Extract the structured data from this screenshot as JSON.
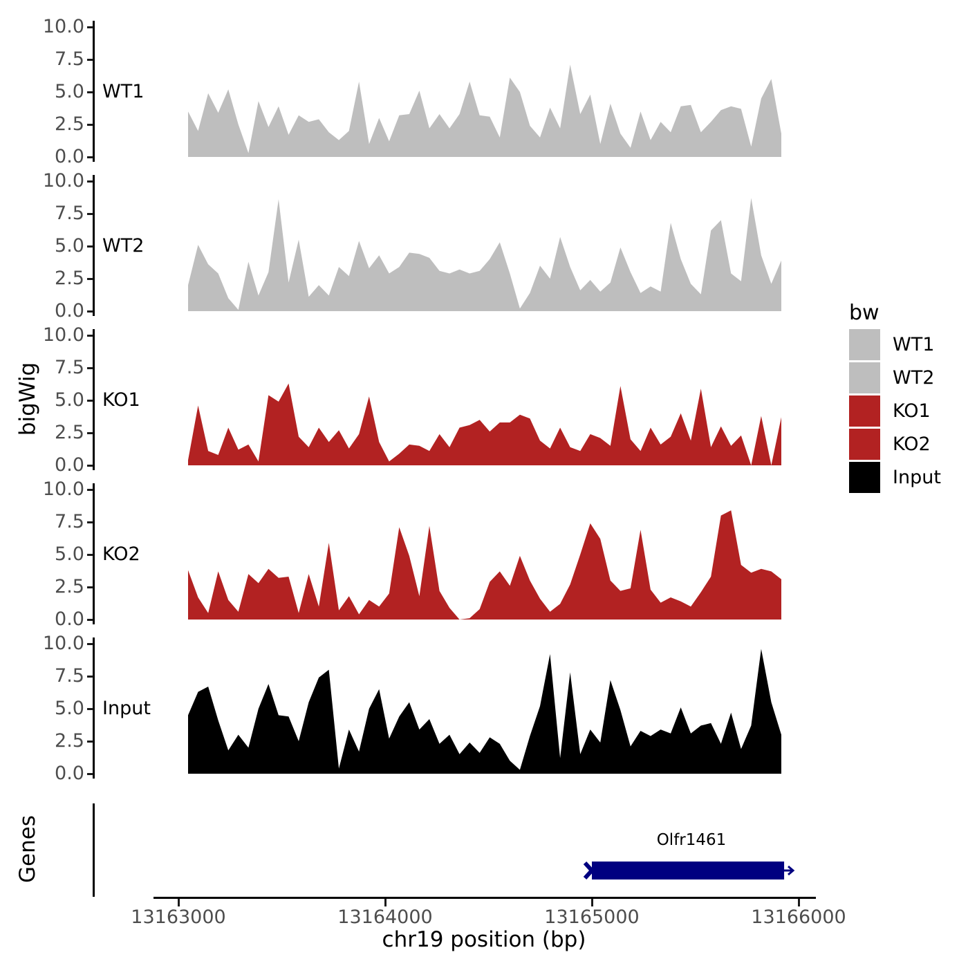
{
  "chart_data": {
    "type": "area",
    "title": "",
    "xlabel": "chr19 position (bp)",
    "ylabel": "bigWig",
    "ylim": [
      0,
      10
    ],
    "y_ticks": [
      0.0,
      2.5,
      5.0,
      7.5,
      10.0
    ],
    "y_tick_labels": [
      "0.0",
      "2.5",
      "5.0",
      "7.5",
      "10.0"
    ],
    "x_range_bp": [
      13163000,
      13166000
    ],
    "x_ticks_bp": [
      13163000,
      13164000,
      13165000,
      13166000
    ],
    "x_tick_labels": [
      "13163000",
      "13164000",
      "13165000",
      "13166000"
    ],
    "grid": false,
    "legend_position": "right",
    "data_x_start_bp": 13163047,
    "data_x_step_bp": 48.6,
    "series": [
      {
        "name": "WT1",
        "color": "#BEBEBE",
        "values": [
          3.5,
          2.0,
          4.9,
          3.4,
          5.2,
          2.5,
          0.3,
          4.3,
          2.3,
          3.9,
          1.7,
          3.2,
          2.7,
          2.9,
          1.9,
          1.3,
          2.0,
          5.8,
          1.0,
          3.0,
          1.2,
          3.2,
          3.3,
          5.1,
          2.2,
          3.3,
          2.2,
          3.3,
          5.8,
          3.2,
          3.1,
          1.5,
          6.1,
          5.0,
          2.4,
          1.5,
          3.8,
          2.2,
          7.1,
          3.3,
          4.8,
          1.0,
          4.1,
          1.8,
          0.7,
          3.5,
          1.3,
          2.7,
          1.9,
          3.9,
          4.0,
          1.9,
          2.7,
          3.6,
          3.9,
          3.7,
          0.8,
          4.5,
          6.0,
          1.8
        ]
      },
      {
        "name": "WT2",
        "color": "#BEBEBE",
        "values": [
          2.0,
          5.1,
          3.6,
          2.9,
          1.0,
          0.1,
          3.8,
          1.2,
          3.0,
          8.6,
          2.2,
          5.5,
          1.1,
          2.0,
          1.2,
          3.4,
          2.7,
          5.4,
          3.3,
          4.3,
          2.9,
          3.4,
          4.5,
          4.4,
          4.1,
          3.1,
          2.9,
          3.2,
          2.9,
          3.1,
          4.0,
          5.3,
          2.9,
          0.2,
          1.4,
          3.5,
          2.5,
          5.7,
          3.4,
          1.6,
          2.4,
          1.5,
          2.2,
          4.9,
          3.0,
          1.4,
          1.9,
          1.5,
          6.8,
          4.0,
          2.1,
          1.3,
          6.2,
          7.0,
          2.9,
          2.3,
          8.7,
          4.3,
          2.1,
          3.9
        ]
      },
      {
        "name": "KO1",
        "color": "#B22222",
        "values": [
          0.4,
          4.6,
          1.1,
          0.8,
          2.9,
          1.2,
          1.6,
          0.3,
          5.4,
          4.9,
          6.3,
          2.2,
          1.4,
          2.9,
          1.8,
          2.7,
          1.3,
          2.4,
          5.3,
          1.8,
          0.3,
          0.9,
          1.6,
          1.5,
          1.1,
          2.4,
          1.4,
          2.9,
          3.1,
          3.5,
          2.6,
          3.3,
          3.3,
          3.9,
          3.6,
          1.9,
          1.3,
          2.9,
          1.4,
          1.1,
          2.4,
          2.1,
          1.5,
          6.1,
          2.0,
          1.1,
          2.9,
          1.6,
          2.2,
          4.0,
          1.9,
          5.9,
          1.4,
          3.0,
          1.5,
          2.3,
          0.0,
          3.8,
          0.0,
          3.7
        ]
      },
      {
        "name": "KO2",
        "color": "#B22222",
        "values": [
          3.8,
          1.7,
          0.5,
          3.7,
          1.5,
          0.6,
          3.5,
          2.8,
          3.9,
          3.2,
          3.3,
          0.5,
          3.5,
          1.0,
          5.9,
          0.7,
          1.8,
          0.4,
          1.5,
          1.0,
          2.0,
          7.1,
          4.9,
          1.8,
          7.2,
          2.2,
          0.9,
          0.0,
          0.1,
          0.8,
          2.9,
          3.7,
          2.6,
          4.9,
          3.0,
          1.6,
          0.6,
          1.2,
          2.7,
          5.0,
          7.4,
          6.2,
          3.0,
          2.2,
          2.4,
          6.9,
          2.3,
          1.3,
          1.7,
          1.4,
          1.0,
          2.1,
          3.3,
          8.0,
          8.4,
          4.2,
          3.6,
          3.9,
          3.7,
          3.1
        ]
      },
      {
        "name": "Input",
        "color": "#000000",
        "values": [
          4.5,
          6.3,
          6.7,
          4.1,
          1.8,
          3.0,
          2.0,
          5.0,
          6.9,
          4.5,
          4.4,
          2.5,
          5.5,
          7.4,
          8.0,
          0.4,
          3.4,
          1.7,
          5.0,
          6.5,
          2.7,
          4.4,
          5.5,
          3.4,
          4.2,
          2.3,
          3.0,
          1.5,
          2.4,
          1.6,
          2.8,
          2.3,
          1.0,
          0.3,
          2.9,
          5.2,
          9.2,
          1.2,
          7.8,
          1.5,
          3.4,
          2.4,
          7.2,
          4.9,
          2.1,
          3.3,
          2.9,
          3.4,
          3.1,
          5.1,
          3.1,
          3.7,
          3.9,
          2.3,
          4.7,
          1.9,
          3.7,
          9.6,
          5.5,
          3.0
        ]
      }
    ],
    "genes_track": {
      "label": "Genes",
      "genes": [
        {
          "name": "Olfr1461",
          "start_bp": 13165000,
          "end_bp": 13165930,
          "strand": "+",
          "color": "#000080"
        }
      ]
    },
    "legend": {
      "title": "bw",
      "entries": [
        {
          "label": "WT1",
          "color": "#BEBEBE"
        },
        {
          "label": "WT2",
          "color": "#BEBEBE"
        },
        {
          "label": "KO1",
          "color": "#B22222"
        },
        {
          "label": "KO2",
          "color": "#B22222"
        },
        {
          "label": "Input",
          "color": "#000000"
        }
      ]
    },
    "colors": {
      "wt": "#BEBEBE",
      "ko": "#B22222",
      "input": "#000000",
      "gene": "#000080",
      "tick_text": "#4d4d4d",
      "axis": "#000000"
    }
  }
}
